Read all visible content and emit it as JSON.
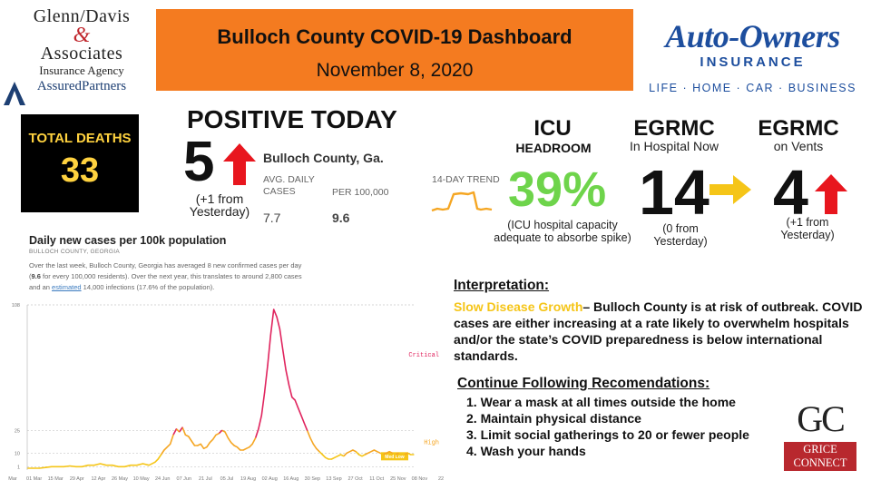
{
  "sponsor": {
    "line1": "Glenn/Davis",
    "ampersand": "&",
    "line2": "Associates",
    "line3": "Insurance Agency",
    "line4": "AssuredPartners",
    "icon": "assured-partners-logo-mark"
  },
  "header": {
    "title": "Bulloch County COVID-19 Dashboard",
    "date": "November 8, 2020",
    "background": "#f47b20"
  },
  "insurer": {
    "name": "Auto-Owners",
    "sub": "INSURANCE",
    "tagline": "LIFE · HOME · CAR · BUSINESS",
    "color": "#1d4e9e"
  },
  "deaths": {
    "label": "TOTAL DEATHS",
    "value": "33"
  },
  "positive": {
    "label": "POSITIVE TODAY",
    "value": "5",
    "note": "(+1 from Yesterday)",
    "arrow_icon": "up-arrow-icon"
  },
  "stats": {
    "county": "Bulloch County, Ga.",
    "col1_header": "AVG. DAILY CASES",
    "col2_header": "PER 100,000",
    "col1_value": "7.7",
    "col2_value": "9.6",
    "trend_label": "14-DAY TREND"
  },
  "icu": {
    "label": "ICU",
    "sub": "HEADROOM",
    "value": "39%",
    "note": "(ICU hospital capacity adequate to absorbe spike)",
    "value_color": "#6ed44b"
  },
  "hospital": {
    "label": "EGRMC",
    "sub": "In Hospital Now",
    "value": "14",
    "note": "(0 from Yesterday)",
    "arrow_icon": "right-arrow-icon"
  },
  "vents": {
    "label": "EGRMC",
    "sub": "on Vents",
    "value": "4",
    "note": "(+1 from Yesterday)",
    "arrow_icon": "up-arrow-icon"
  },
  "chart_meta": {
    "title": "Daily new cases per 100k population",
    "subtitle": "BULLOCH COUNTY, GEORGIA",
    "desc_a": "Over the last week, Bulloch County, Georgia has averaged 8 new confirmed cases per day (",
    "desc_bold": "9.6",
    "desc_b": " for every 100,000 residents). Over the next year, this translates to around 2,800 cases and an ",
    "desc_link": "estimated",
    "desc_c": " 14,000 infections (17.6% of the population)."
  },
  "chart_data": {
    "type": "line",
    "title": "Daily new cases per 100k population",
    "subtitle": "BULLOCH COUNTY, GEORGIA",
    "xlabel": "",
    "ylabel": "",
    "ylim": [
      0,
      108
    ],
    "yticks": [
      1,
      10,
      25,
      108
    ],
    "x_tick_labels": [
      "Mar",
      "01 Mar",
      "15 Mar",
      "29 Apr",
      "12 Apr",
      "26 May",
      "10 May",
      "24 Jun",
      "07 Jun",
      "21 Jul",
      "05 Jul",
      "19 Aug",
      "02 Aug",
      "16 Aug",
      "30 Sep",
      "13 Sep",
      "27 Oct",
      "11 Oct",
      "25 Nov",
      "08 Nov",
      "22"
    ],
    "thresholds": [
      {
        "label": "Critical",
        "value": 75,
        "color": "#e0245e"
      },
      {
        "label": "High",
        "value": 17,
        "color": "#f5a623"
      },
      {
        "label": "Med Low",
        "value": 10,
        "color": "#f5c518"
      }
    ],
    "grid": true,
    "series": [
      {
        "x": [
          0,
          4,
          8,
          12,
          16,
          20,
          24,
          28,
          32,
          36,
          40,
          44,
          48,
          52,
          56,
          60,
          64,
          68,
          72,
          76,
          80,
          84,
          86,
          88,
          90,
          92,
          94,
          96,
          98,
          100,
          102,
          104,
          106,
          108,
          110,
          112,
          114,
          116,
          118,
          120,
          122,
          124,
          126,
          128,
          130,
          132,
          134,
          136,
          138,
          140,
          142,
          144,
          146,
          148,
          150,
          152,
          154,
          156,
          158,
          160,
          162,
          164,
          166,
          168,
          170,
          172,
          174,
          176,
          178,
          180,
          182,
          184,
          186,
          188,
          190,
          192,
          194,
          196,
          198,
          200,
          202,
          204,
          206,
          208,
          210,
          212,
          214,
          216,
          218,
          220,
          222,
          224,
          226,
          228,
          230,
          232,
          234,
          236,
          238,
          240,
          242,
          244,
          246,
          248,
          250,
          252,
          254
        ],
        "y": [
          0,
          0,
          0,
          0.5,
          1,
          1,
          1,
          1.5,
          1,
          1,
          2,
          2,
          3,
          2,
          2,
          1,
          1,
          2,
          2,
          3,
          2,
          4,
          6,
          9,
          12,
          14,
          16,
          22,
          26,
          24,
          27,
          22,
          21,
          18,
          15,
          15,
          16,
          13,
          14,
          17,
          19,
          22,
          23,
          25,
          24,
          20,
          17,
          15,
          14,
          12,
          12,
          13,
          14,
          16,
          20,
          26,
          35,
          50,
          68,
          88,
          105,
          100,
          92,
          78,
          65,
          55,
          47,
          45,
          40,
          35,
          30,
          25,
          20,
          16,
          13,
          11,
          9,
          7,
          6,
          6,
          7,
          8,
          9,
          8,
          10,
          11,
          12,
          11,
          9,
          8,
          9,
          10,
          11,
          12,
          11,
          10,
          9,
          10,
          11,
          10,
          9,
          10,
          9,
          9,
          10,
          9,
          9
        ]
      }
    ]
  },
  "interpretation": {
    "title": "Interpretation:",
    "status": "Slow Disease Growth",
    "body": "– Bulloch County is at risk of outbreak. COVID cases are either increasing at a rate likely to overwhelm hospitals and/or the state’s COVID preparedness is below international standards.",
    "status_color": "#f5c518"
  },
  "recommendations": {
    "title": "Continue Following Recomendations:",
    "items": [
      "1. Wear a mask at all times outside the home",
      "2. Maintain physical distance",
      "3. Limit social gatherings to 20 or fewer people",
      "4. Wash your hands"
    ]
  },
  "grice": {
    "letters": "GC",
    "line1": "GRICE",
    "line2": "CONNECT",
    "color": "#b8282e"
  }
}
